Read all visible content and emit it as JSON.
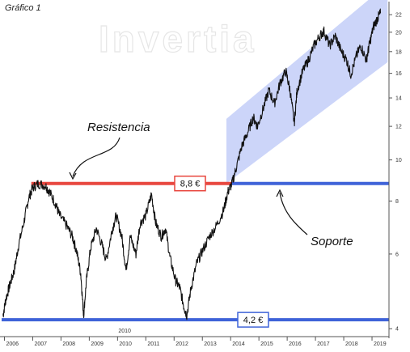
{
  "chart_data": {
    "type": "line",
    "title": "Gráfico 1",
    "watermark": "Invertia",
    "y_scale": "log",
    "ylim": [
      3.9,
      23
    ],
    "y_ticks": [
      4,
      6,
      8,
      10,
      12,
      14,
      16,
      18,
      20,
      22
    ],
    "x_ticks": [
      "2006",
      "2007",
      "2008",
      "2009",
      "2010",
      "2011",
      "2012",
      "2013",
      "2014",
      "2015",
      "2016",
      "2017",
      "2018",
      "2019"
    ],
    "x_extra_label": "2010",
    "xlim": [
      2005.9,
      2019.6
    ],
    "series": [
      {
        "points": [
          [
            2005.95,
            4.3
          ],
          [
            2006.05,
            4.7
          ],
          [
            2006.2,
            5.1
          ],
          [
            2006.35,
            5.5
          ],
          [
            2006.5,
            6.3
          ],
          [
            2006.7,
            7.2
          ],
          [
            2006.85,
            8.1
          ],
          [
            2007.0,
            8.6
          ],
          [
            2007.2,
            8.8
          ],
          [
            2007.45,
            8.7
          ],
          [
            2007.6,
            8.4
          ],
          [
            2007.8,
            7.9
          ],
          [
            2007.95,
            7.4
          ],
          [
            2008.2,
            7.0
          ],
          [
            2008.4,
            6.6
          ],
          [
            2008.55,
            6.1
          ],
          [
            2008.7,
            5.4
          ],
          [
            2008.8,
            4.3
          ],
          [
            2008.9,
            5.2
          ],
          [
            2009.05,
            6.2
          ],
          [
            2009.25,
            6.9
          ],
          [
            2009.45,
            6.3
          ],
          [
            2009.6,
            5.8
          ],
          [
            2009.8,
            6.8
          ],
          [
            2009.95,
            7.4
          ],
          [
            2010.15,
            6.6
          ],
          [
            2010.3,
            5.5
          ],
          [
            2010.45,
            6.6
          ],
          [
            2010.65,
            6.0
          ],
          [
            2010.8,
            7.1
          ],
          [
            2011.0,
            7.4
          ],
          [
            2011.2,
            8.3
          ],
          [
            2011.35,
            7.1
          ],
          [
            2011.55,
            6.6
          ],
          [
            2011.7,
            6.9
          ],
          [
            2011.85,
            5.9
          ],
          [
            2012.05,
            5.2
          ],
          [
            2012.2,
            5.0
          ],
          [
            2012.35,
            4.5
          ],
          [
            2012.45,
            4.3
          ],
          [
            2012.6,
            5.0
          ],
          [
            2012.8,
            5.7
          ],
          [
            2013.0,
            6.1
          ],
          [
            2013.25,
            6.6
          ],
          [
            2013.5,
            7.0
          ],
          [
            2013.75,
            7.6
          ],
          [
            2013.9,
            8.4
          ],
          [
            2014.05,
            8.8
          ],
          [
            2014.2,
            9.6
          ],
          [
            2014.4,
            10.8
          ],
          [
            2014.6,
            11.6
          ],
          [
            2014.8,
            12.6
          ],
          [
            2014.95,
            12.0
          ],
          [
            2015.15,
            13.2
          ],
          [
            2015.35,
            14.6
          ],
          [
            2015.55,
            13.6
          ],
          [
            2015.75,
            15.2
          ],
          [
            2015.95,
            16.2
          ],
          [
            2016.1,
            14.6
          ],
          [
            2016.25,
            12.2
          ],
          [
            2016.35,
            14.6
          ],
          [
            2016.55,
            16.2
          ],
          [
            2016.75,
            17.2
          ],
          [
            2016.95,
            18.6
          ],
          [
            2017.15,
            19.6
          ],
          [
            2017.3,
            20.1
          ],
          [
            2017.5,
            18.6
          ],
          [
            2017.7,
            19.6
          ],
          [
            2017.9,
            18.1
          ],
          [
            2018.1,
            17.2
          ],
          [
            2018.25,
            15.9
          ],
          [
            2018.45,
            17.6
          ],
          [
            2018.6,
            18.6
          ],
          [
            2018.8,
            17.2
          ],
          [
            2018.9,
            18.6
          ],
          [
            2019.05,
            20.6
          ],
          [
            2019.2,
            21.6
          ],
          [
            2019.3,
            22.2
          ]
        ]
      }
    ],
    "annotations": {
      "resistencia_text": "Resistencia",
      "soporte_text": "Soporte",
      "resistance_label": "8,8 €",
      "support_label": "4,2 €",
      "resistance_value": 8.8,
      "support_value": 4.2,
      "resistance_x_range": [
        2006.95,
        2014.05
      ],
      "upper_line_x_range": [
        2014.05,
        2019.6
      ],
      "channel": {
        "x_start": 2013.85,
        "x_end": 2019.55,
        "lower_start": 8.8,
        "lower_end": 17.0,
        "upper_start": 12.5,
        "upper_end": 26.0
      },
      "colors": {
        "resistance": "#e8473f",
        "support": "#3f63d8",
        "channel_fill": "#c3cef8",
        "price_line": "#111111",
        "box_border": "#e8473f",
        "support_box_border": "#3f63d8"
      }
    }
  }
}
